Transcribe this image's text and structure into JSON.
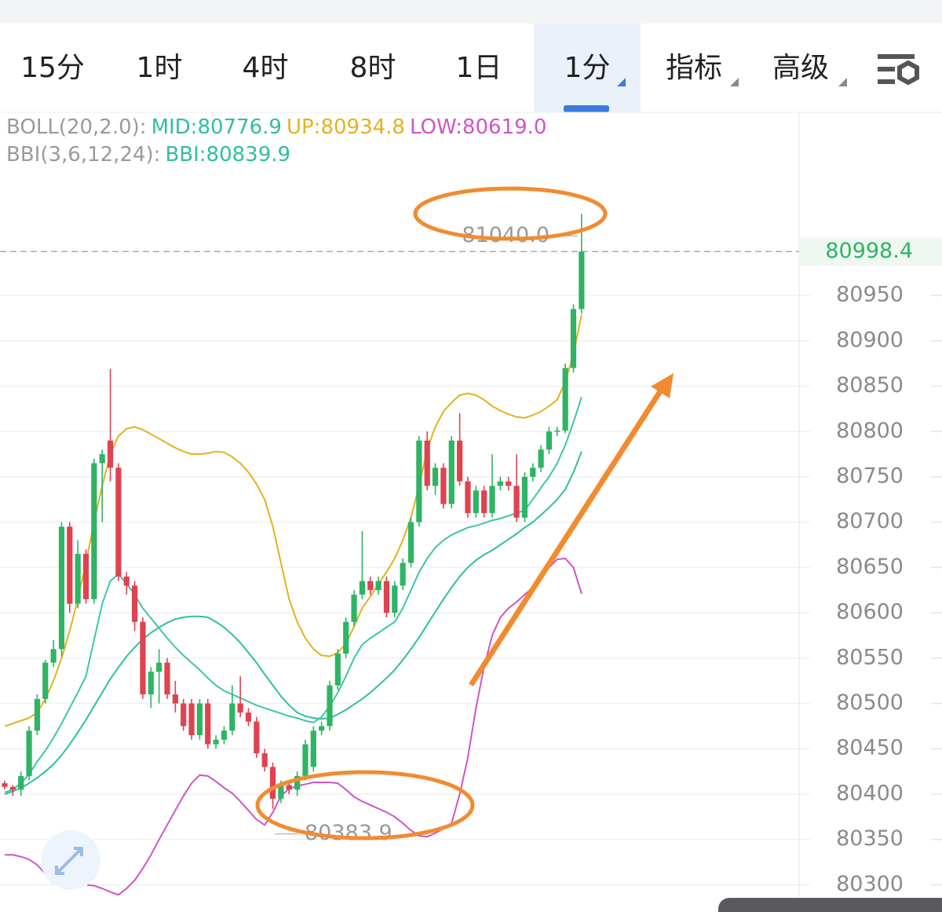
{
  "tabs": [
    "15分",
    "1时",
    "4时",
    "8时",
    "1日",
    "1分",
    "指标",
    "高级"
  ],
  "selected_tab": 5,
  "chart_data": {
    "type": "candlestick",
    "legend": [
      [
        "BOLL(20,2.0):",
        "MID:80776.9",
        "UP:80934.8",
        "LOW:80619.0"
      ],
      [
        "BBI(3,6,12,24):",
        "BBI:80839.9"
      ]
    ],
    "legend_colors": [
      [
        "#9a9a9a",
        "#2fbf9f",
        "#e3b21f",
        "#d055c4"
      ],
      [
        "#9a9a9a",
        "#2fbf9f"
      ]
    ],
    "up_color": "#2eb464",
    "down_color": "#e0424f",
    "ohlc": [
      [
        80412,
        80415,
        80405,
        80408
      ],
      [
        80408,
        80410,
        80398,
        80405
      ],
      [
        80405,
        80425,
        80398,
        80420
      ],
      [
        80420,
        80475,
        80415,
        80470
      ],
      [
        80470,
        80510,
        80465,
        80505
      ],
      [
        80505,
        80548,
        80500,
        80545
      ],
      [
        80545,
        80570,
        80540,
        80560
      ],
      [
        80560,
        80700,
        80552,
        80695
      ],
      [
        80695,
        80700,
        80600,
        80610
      ],
      [
        80610,
        80680,
        80605,
        80665
      ],
      [
        80665,
        80670,
        80610,
        80615
      ],
      [
        80615,
        80770,
        80610,
        80765
      ],
      [
        80765,
        80780,
        80700,
        80775
      ],
      [
        80790,
        80869,
        80745,
        80760
      ],
      [
        80760,
        80765,
        80635,
        80640
      ],
      [
        80640,
        80645,
        80620,
        80630
      ],
      [
        80630,
        80635,
        80580,
        80590
      ],
      [
        80590,
        80595,
        80505,
        80510
      ],
      [
        80510,
        80540,
        80495,
        80535
      ],
      [
        80535,
        80560,
        80500,
        80545
      ],
      [
        80545,
        80550,
        80505,
        80510
      ],
      [
        80510,
        80525,
        80490,
        80500
      ],
      [
        80500,
        80505,
        80470,
        80475
      ],
      [
        80500,
        80505,
        80460,
        80465
      ],
      [
        80465,
        80505,
        80460,
        80500
      ],
      [
        80500,
        80505,
        80450,
        80455
      ],
      [
        80455,
        80465,
        80450,
        80460
      ],
      [
        80460,
        80475,
        80455,
        80470
      ],
      [
        80470,
        80520,
        80465,
        80500
      ],
      [
        80500,
        80530,
        80485,
        80490
      ],
      [
        80490,
        80495,
        80475,
        80480
      ],
      [
        80480,
        80485,
        80440,
        80445
      ],
      [
        80445,
        80450,
        80425,
        80430
      ],
      [
        80430,
        80435,
        80383.9,
        80395
      ],
      [
        80395,
        80415,
        80390,
        80410
      ],
      [
        80410,
        80415,
        80400,
        80405
      ],
      [
        80405,
        80425,
        80398,
        80420
      ],
      [
        80420,
        80460,
        80415,
        80455
      ],
      [
        80430,
        80475,
        80425,
        80470
      ],
      [
        80470,
        80480,
        80465,
        80475
      ],
      [
        80475,
        80525,
        80470,
        80520
      ],
      [
        80520,
        80560,
        80515,
        80555
      ],
      [
        80555,
        80595,
        80550,
        80590
      ],
      [
        80590,
        80625,
        80585,
        80620
      ],
      [
        80620,
        80690,
        80615,
        80635
      ],
      [
        80635,
        80640,
        80620,
        80625
      ],
      [
        80625,
        80640,
        80620,
        80635
      ],
      [
        80635,
        80640,
        80595,
        80600
      ],
      [
        80600,
        80635,
        80595,
        80630
      ],
      [
        80630,
        80660,
        80625,
        80655
      ],
      [
        80655,
        80705,
        80650,
        80700
      ],
      [
        80700,
        80795,
        80695,
        80790
      ],
      [
        80790,
        80800,
        80735,
        80740
      ],
      [
        80740,
        80765,
        80730,
        80760
      ],
      [
        80760,
        80765,
        80715,
        80720
      ],
      [
        80720,
        80795,
        80715,
        80790
      ],
      [
        80790,
        80820,
        80740,
        80745
      ],
      [
        80745,
        80750,
        80705,
        80710
      ],
      [
        80710,
        80740,
        80705,
        80735
      ],
      [
        80735,
        80740,
        80705,
        80710
      ],
      [
        80710,
        80775,
        80705,
        80740
      ],
      [
        80740,
        80750,
        80735,
        80745
      ],
      [
        80745,
        80750,
        80735,
        80740
      ],
      [
        80740,
        80775,
        80700,
        80705
      ],
      [
        80705,
        80755,
        80700,
        80750
      ],
      [
        80750,
        80765,
        80745,
        80760
      ],
      [
        80760,
        80785,
        80755,
        80780
      ],
      [
        80780,
        80805,
        80775,
        80800
      ],
      [
        80800,
        80805,
        80795,
        80801
      ],
      [
        80801,
        80875,
        80798,
        80870
      ],
      [
        80870,
        80940,
        80865,
        80935
      ],
      [
        80935,
        81040,
        80930,
        80998.4
      ]
    ],
    "lines": [
      {
        "color": "#e3b21f",
        "values": [
          80475,
          80478,
          80481,
          80484,
          80490,
          80505,
          80525,
          80550,
          80580,
          80615,
          80655,
          80700,
          80740,
          80775,
          80795,
          80803,
          80805,
          80802,
          80797,
          80792,
          80787,
          80782,
          80778,
          80775,
          80775,
          80776,
          80778,
          80777,
          80772,
          80765,
          80755,
          80742,
          80725,
          80695,
          80655,
          80615,
          80590,
          80572,
          80560,
          80553,
          80552,
          80556,
          80566,
          80585,
          80605,
          80618,
          80632,
          80645,
          80660,
          80680,
          80705,
          80740,
          80780,
          80805,
          80822,
          80832,
          80840,
          80842,
          80840,
          80835,
          80828,
          80823,
          80819,
          80816,
          80815,
          80818,
          80822,
          80828,
          80835,
          80855,
          80885,
          80929
        ]
      },
      {
        "color": "#2fbf9f",
        "values": [
          80400,
          80403,
          80407,
          80412,
          80418,
          80425,
          80433,
          80443,
          80455,
          80468,
          80482,
          80497,
          80512,
          80527,
          80540,
          80552,
          80562,
          80571,
          80578,
          80584,
          80589,
          80593,
          80595,
          80596,
          80596,
          80595,
          80590,
          80584,
          80576,
          80567,
          80556,
          80545,
          80532,
          80520,
          80508,
          80498,
          80490,
          80486,
          80484,
          80483,
          80484,
          80488,
          80493,
          80499,
          80505,
          80512,
          80520,
          80528,
          80537,
          80548,
          80560,
          80573,
          80587,
          80601,
          80615,
          80628,
          80640,
          80650,
          80658,
          80664,
          80669,
          80675,
          80681,
          80687,
          80694,
          80700,
          80708,
          80716,
          80725,
          80736,
          80755,
          80778
        ]
      },
      {
        "color": "#3cc6a9",
        "values": [
          80402,
          80405,
          80412,
          80422,
          80436,
          80448,
          80462,
          80478,
          80495,
          80512,
          80530,
          80570,
          80610,
          80635,
          80643,
          80632,
          80620,
          80605,
          80594,
          80583,
          80572,
          80562,
          80553,
          80545,
          80537,
          80528,
          80520,
          80514,
          80510,
          80506,
          80502,
          80498,
          80495,
          80492,
          80489,
          80486,
          80484,
          80481,
          80479,
          80485,
          80497,
          80512,
          80530,
          80550,
          80565,
          80572,
          80578,
          80584,
          80590,
          80605,
          80625,
          80645,
          80660,
          80672,
          80680,
          80686,
          80690,
          80694,
          80696,
          80699,
          80702,
          80704,
          80707,
          80710,
          80713,
          80725,
          80738,
          80750,
          80765,
          80785,
          80810,
          80838
        ]
      },
      {
        "color": "#d055c4",
        "values": [
          80333,
          80333,
          80331,
          80328,
          80322,
          80312,
          80302,
          80297,
          80297,
          80299,
          80300,
          80299,
          80296,
          80292,
          80289,
          80296,
          80305,
          80318,
          80333,
          80350,
          80366,
          80382,
          80398,
          80412,
          80421,
          80420,
          80414,
          80407,
          80401,
          80392,
          80382,
          80372,
          80366,
          80380,
          80398,
          80406,
          80409,
          80411,
          80413,
          80413,
          80413,
          80412,
          80405,
          80397,
          80392,
          80388,
          80384,
          80380,
          80375,
          80368,
          80360,
          80354,
          80353,
          80357,
          80362,
          80368,
          80400,
          80440,
          80495,
          80540,
          80575,
          80595,
          80605,
          80612,
          80620,
          80628,
          80638,
          80650,
          80659,
          80660,
          80650,
          80621
        ]
      }
    ],
    "ylim": [
      80270,
      81152
    ],
    "yticks": [
      80300,
      80350,
      80400,
      80450,
      80500,
      80550,
      80600,
      80650,
      80700,
      80750,
      80800,
      80850,
      80900,
      80950
    ],
    "grid": true,
    "last_price": 80998.4,
    "high_label": {
      "value": 81040,
      "label": "81040.0"
    },
    "low_label": 80383.9
  }
}
